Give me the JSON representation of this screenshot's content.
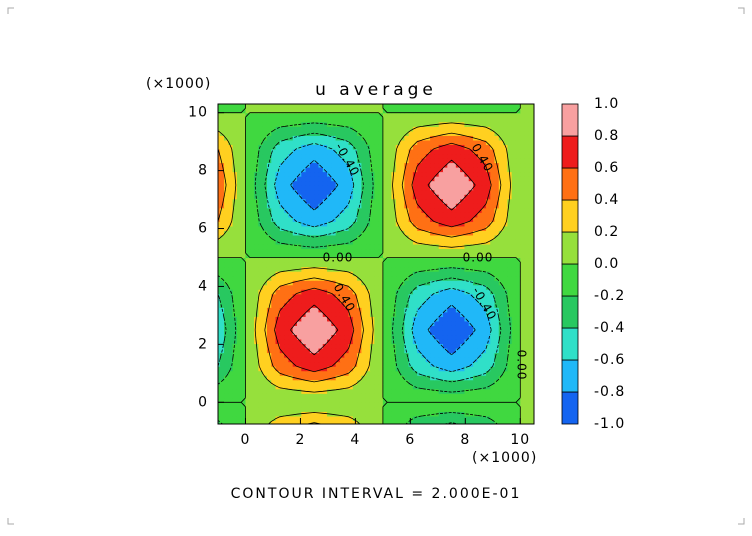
{
  "chart_data": {
    "type": "contour",
    "title": "u average",
    "x_label": "(×1000)",
    "y_label": "(×1000)",
    "footer": "CONTOUR INTERVAL = 2.000E-01",
    "x": [
      -1.25,
      0,
      1.25,
      2.5,
      3.75,
      5,
      6.25,
      7.5,
      8.75,
      10,
      11.25
    ],
    "y": [
      -1.25,
      0,
      1.25,
      2.5,
      3.75,
      5,
      6.25,
      7.5,
      8.75,
      10,
      11.25
    ],
    "z": [
      [
        -0.5,
        0,
        0.5,
        0.71,
        0.5,
        0,
        -0.5,
        -0.71,
        -0.5,
        0,
        0
      ],
      [
        0,
        0,
        0,
        0,
        0,
        0,
        0,
        0,
        0,
        0,
        0
      ],
      [
        -0.5,
        0,
        0.5,
        0.71,
        0.5,
        0,
        -0.5,
        -0.71,
        -0.5,
        0,
        0
      ],
      [
        -0.71,
        0,
        0.71,
        1,
        0.71,
        0,
        -0.71,
        -1,
        -0.71,
        0,
        0
      ],
      [
        -0.5,
        0,
        0.5,
        0.71,
        0.5,
        0,
        -0.5,
        -0.71,
        -0.5,
        0,
        0
      ],
      [
        0,
        0,
        0,
        0,
        0,
        0,
        0,
        0,
        0,
        0,
        0
      ],
      [
        0.5,
        0,
        -0.5,
        -0.71,
        -0.5,
        0,
        0.5,
        0.71,
        0.5,
        0,
        0
      ],
      [
        0.71,
        0,
        -0.71,
        -1,
        -0.71,
        0,
        0.71,
        1,
        0.71,
        0,
        0
      ],
      [
        0.5,
        0,
        -0.5,
        -0.71,
        -0.5,
        0,
        0.5,
        0.71,
        0.5,
        0,
        0
      ],
      [
        0,
        0,
        0,
        0,
        0,
        0,
        0,
        0,
        0,
        0,
        0
      ],
      [
        -0.5,
        0,
        0.5,
        0.71,
        0.5,
        0,
        -0.5,
        -0.71,
        -0.5,
        0,
        0
      ]
    ],
    "xlim": [
      -1,
      10.5
    ],
    "ylim": [
      -0.75,
      10.3
    ],
    "xticks": [
      0,
      2,
      4,
      6,
      8,
      10
    ],
    "yticks": [
      0,
      2,
      4,
      6,
      8,
      10
    ],
    "levels": [
      {
        "value": -1,
        "label": "-1.0"
      },
      {
        "value": -0.8,
        "label": "-0.8"
      },
      {
        "value": -0.6,
        "label": "-0.6"
      },
      {
        "value": -0.4,
        "label": "-0.4"
      },
      {
        "value": -0.2,
        "label": "-0.2"
      },
      {
        "value": 0,
        "label": "0.0"
      },
      {
        "value": 0.2,
        "label": "0.2"
      },
      {
        "value": 0.4,
        "label": "0.4"
      },
      {
        "value": 0.6,
        "label": "0.6"
      },
      {
        "value": 0.8,
        "label": "0.8"
      },
      {
        "value": 1,
        "label": "1.0"
      }
    ],
    "colors": [
      "#1464f0",
      "#20b8f8",
      "#30e0c8",
      "#28c860",
      "#40d840",
      "#96e03c",
      "#ffd020",
      "#ff7014",
      "#ee1c1c",
      "#f8a0a0"
    ],
    "annotations": [
      "-0.40",
      "0.40",
      "0.00",
      "0.00",
      "0.40",
      "-0.40",
      "0.00"
    ]
  }
}
